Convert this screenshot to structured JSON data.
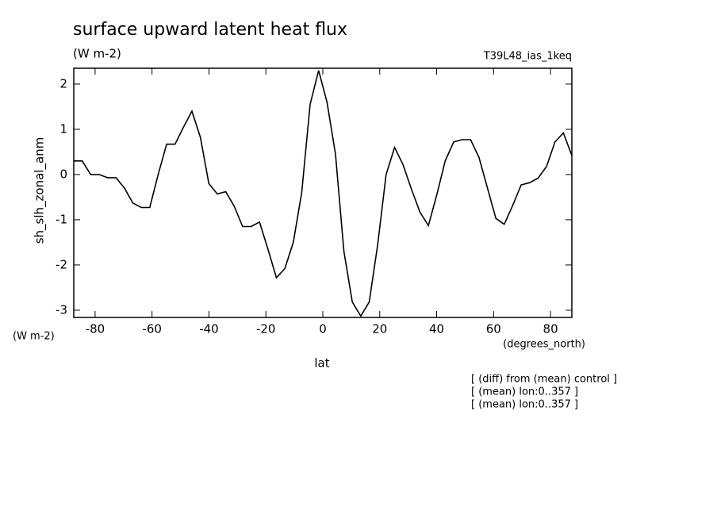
{
  "chart_data": {
    "type": "line",
    "title": "surface upward latent heat flux",
    "subtitle": "(W m-2)",
    "experiment": "T39L48_ias_1keq",
    "ylabel": "sh_slh_zonal_anm",
    "yunits": "(W m-2)",
    "xunits": "(degrees_north)",
    "xlabel": "lat",
    "notes": [
      "[ (diff) from (mean) control ]",
      "[ (mean) lon:0..357 ]",
      "[ (mean) lon:0..357 ]"
    ],
    "x": [
      -87.5,
      -84.53,
      -81.57,
      -78.6,
      -75.64,
      -72.67,
      -69.7,
      -66.74,
      -63.77,
      -60.81,
      -57.84,
      -54.87,
      -51.91,
      -48.94,
      -45.97,
      -43.01,
      -40.04,
      -37.08,
      -34.11,
      -31.14,
      -28.18,
      -25.21,
      -22.25,
      -19.28,
      -16.31,
      -13.35,
      -10.38,
      -7.42,
      -4.45,
      -1.48,
      1.48,
      4.45,
      7.42,
      10.38,
      13.35,
      16.31,
      19.28,
      22.25,
      25.21,
      28.18,
      31.14,
      34.11,
      37.08,
      40.04,
      43.01,
      45.97,
      48.94,
      51.91,
      54.87,
      57.84,
      60.81,
      63.77,
      66.74,
      69.7,
      72.67,
      75.64,
      78.6,
      81.57,
      84.53,
      87.5
    ],
    "series": [
      {
        "color": "#000000",
        "values": [
          0.3,
          0.3,
          0.0,
          0.0,
          -0.07,
          -0.07,
          -0.3,
          -0.63,
          -0.73,
          -0.73,
          0.0,
          0.67,
          0.67,
          1.05,
          1.4,
          0.82,
          -0.2,
          -0.43,
          -0.38,
          -0.7,
          -1.15,
          -1.15,
          -1.05,
          -1.65,
          -2.28,
          -2.08,
          -1.5,
          -0.4,
          1.55,
          2.3,
          1.6,
          0.45,
          -1.7,
          -2.82,
          -3.13,
          -2.82,
          -1.55,
          0.0,
          0.6,
          0.22,
          -0.32,
          -0.83,
          -1.13,
          -0.45,
          0.3,
          0.72,
          0.77,
          0.77,
          0.38,
          -0.3,
          -0.97,
          -1.1,
          -0.68,
          -0.23,
          -0.18,
          -0.08,
          0.18,
          0.72,
          0.92,
          0.42
        ]
      }
    ],
    "xlim": [
      -87.5,
      87.5
    ],
    "xticks": [
      -80,
      -60,
      -40,
      -20,
      0,
      20,
      40,
      60,
      80
    ],
    "ylim": [
      -3.16,
      2.35
    ],
    "yticks": [
      -3,
      -2,
      -1,
      0,
      1,
      2
    ],
    "grid": false
  }
}
